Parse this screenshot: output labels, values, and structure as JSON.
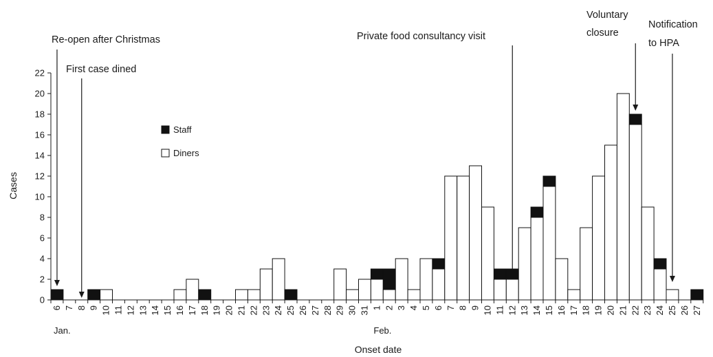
{
  "chart_data": {
    "type": "bar",
    "stacked": true,
    "xlabel": "Onset date",
    "ylabel": "Cases",
    "ylim": [
      0,
      22
    ],
    "yticks": [
      0,
      2,
      4,
      6,
      8,
      10,
      12,
      14,
      16,
      18,
      20,
      22
    ],
    "grid": false,
    "legend_position": "upper-left",
    "categories": [
      "6",
      "7",
      "8",
      "9",
      "10",
      "11",
      "12",
      "13",
      "14",
      "15",
      "16",
      "17",
      "18",
      "19",
      "20",
      "21",
      "22",
      "23",
      "24",
      "25",
      "26",
      "27",
      "28",
      "29",
      "30",
      "31",
      "1",
      "2",
      "3",
      "4",
      "5",
      "6",
      "7",
      "8",
      "9",
      "10",
      "11",
      "12",
      "13",
      "14",
      "15",
      "16",
      "17",
      "18",
      "19",
      "20",
      "21",
      "22",
      "23",
      "24",
      "25",
      "26",
      "27"
    ],
    "month_labels": [
      {
        "label": "Jan.",
        "index": 0
      },
      {
        "label": "Feb.",
        "index": 26
      }
    ],
    "series": [
      {
        "name": "Diners",
        "color": "#ffffff",
        "values": [
          0,
          0,
          0,
          0,
          1,
          0,
          0,
          0,
          0,
          0,
          1,
          2,
          0,
          0,
          0,
          1,
          1,
          3,
          4,
          0,
          0,
          0,
          0,
          3,
          1,
          2,
          2,
          1,
          4,
          1,
          4,
          3,
          12,
          12,
          13,
          9,
          2,
          2,
          7,
          8,
          11,
          4,
          1,
          7,
          12,
          15,
          20,
          17,
          9,
          3,
          1,
          0,
          0
        ]
      },
      {
        "name": "Staff",
        "color": "#111111",
        "values": [
          1,
          0,
          0,
          1,
          0,
          0,
          0,
          0,
          0,
          0,
          0,
          0,
          1,
          0,
          0,
          0,
          0,
          0,
          0,
          1,
          0,
          0,
          0,
          0,
          0,
          0,
          1,
          2,
          0,
          0,
          0,
          1,
          0,
          0,
          0,
          0,
          1,
          1,
          0,
          1,
          1,
          0,
          0,
          0,
          0,
          0,
          0,
          1,
          0,
          1,
          0,
          0,
          1
        ]
      }
    ],
    "annotations": [
      {
        "text": [
          "Re-open after Christmas"
        ],
        "index": 0
      },
      {
        "text": [
          "First case dined"
        ],
        "index": 2
      },
      {
        "text": [
          "Private food consultancy visit"
        ],
        "index": 37
      },
      {
        "text": [
          "Voluntary",
          "closure"
        ],
        "index": 47
      },
      {
        "text": [
          "Notification",
          "to HPA"
        ],
        "index": 50
      }
    ]
  }
}
